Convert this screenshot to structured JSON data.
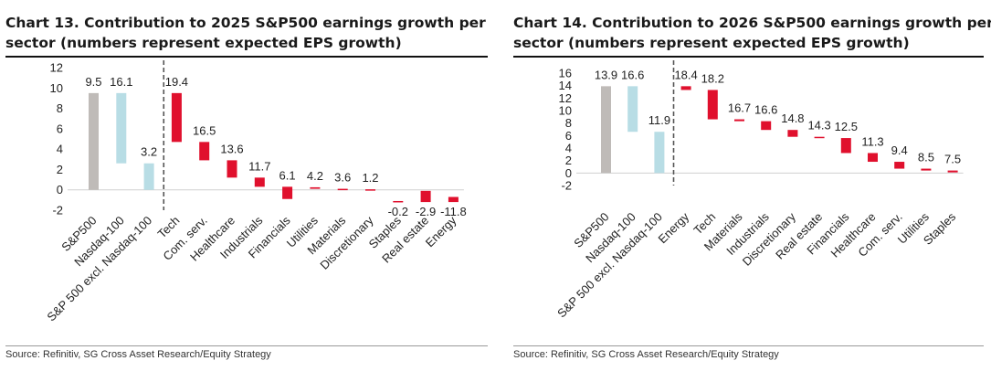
{
  "charts": [
    {
      "title": "Chart 13. Contribution to 2025 S&P500 earnings growth per sector (numbers represent expected EPS growth)",
      "source": "Source: Refinitiv, SG Cross Asset Research/Equity Strategy"
    },
    {
      "title": "Chart 14. Contribution to 2026 S&P500 earnings growth per sector (numbers represent expected EPS growth)",
      "source": "Source: Refinitiv, SG Cross Asset Research/Equity Strategy"
    }
  ],
  "chart_data": [
    {
      "type": "bar",
      "subtype": "waterfall",
      "title": "Chart 13. Contribution to 2025 S&P500 earnings growth per sector (numbers represent expected EPS growth)",
      "xlabel": "",
      "ylabel": "",
      "ylim": [
        -2,
        12
      ],
      "yticks": [
        -2,
        0,
        2,
        4,
        6,
        8,
        10,
        12
      ],
      "grid": false,
      "colors": {
        "total": "#bfbbb8",
        "nasdaq": "#b8dde5",
        "sector": "#e0102d"
      },
      "bars": [
        {
          "category": "S&P500",
          "kind": "total",
          "start": 0,
          "end": 9.5,
          "label": "9.5"
        },
        {
          "category": "Nasdaq-100",
          "kind": "nasdaq",
          "start": 2.6,
          "end": 9.5,
          "label": "16.1"
        },
        {
          "category": "S&P 500 excl. Nasdaq-100",
          "kind": "nasdaq",
          "start": 0,
          "end": 2.6,
          "label": "3.2"
        },
        {
          "category": "Tech",
          "kind": "sector",
          "start": 4.7,
          "end": 9.5,
          "label": "19.4"
        },
        {
          "category": "Com. serv.",
          "kind": "sector",
          "start": 2.9,
          "end": 4.7,
          "label": "16.5"
        },
        {
          "category": "Healthcare",
          "kind": "sector",
          "start": 1.2,
          "end": 2.9,
          "label": "13.6"
        },
        {
          "category": "Industrials",
          "kind": "sector",
          "start": 0.3,
          "end": 1.2,
          "label": "11.7"
        },
        {
          "category": "Financials",
          "kind": "sector",
          "start": -0.9,
          "end": 0.3,
          "label": "6.1"
        },
        {
          "category": "Utilities",
          "kind": "sector",
          "start": 0.1,
          "end": 0.25,
          "label": "4.2"
        },
        {
          "category": "Materials",
          "kind": "sector",
          "start": 0.0,
          "end": 0.1,
          "label": "3.6"
        },
        {
          "category": "Discretionary",
          "kind": "sector",
          "start": 0.0,
          "end": 0.05,
          "label": "1.2"
        },
        {
          "category": "Staples",
          "kind": "sector",
          "start": -1.2,
          "end": -1.1,
          "label": "-0.2"
        },
        {
          "category": "Real estate",
          "kind": "sector",
          "start": -1.2,
          "end": -0.1,
          "label": "-2.9"
        },
        {
          "category": "Energy",
          "kind": "sector",
          "start": -1.2,
          "end": -0.7,
          "label": "-11.8"
        }
      ]
    },
    {
      "type": "bar",
      "subtype": "waterfall",
      "title": "Chart 14. Contribution to 2026 S&P500 earnings growth per sector (numbers represent expected EPS growth)",
      "xlabel": "",
      "ylabel": "",
      "ylim": [
        -2,
        16
      ],
      "yticks": [
        -2,
        0,
        2,
        4,
        6,
        8,
        10,
        12,
        14,
        16
      ],
      "grid": false,
      "colors": {
        "total": "#bfbbb8",
        "nasdaq": "#b8dde5",
        "sector": "#e0102d"
      },
      "bars": [
        {
          "category": "S&P500",
          "kind": "total",
          "start": 0,
          "end": 13.9,
          "label": "13.9"
        },
        {
          "category": "Nasdaq-100",
          "kind": "nasdaq",
          "start": 6.6,
          "end": 13.9,
          "label": "16.6"
        },
        {
          "category": "S&P 500 excl. Nasdaq-100",
          "kind": "nasdaq",
          "start": 0,
          "end": 6.6,
          "label": "11.9"
        },
        {
          "category": "Energy",
          "kind": "sector",
          "start": 13.3,
          "end": 13.9,
          "label": "18.4"
        },
        {
          "category": "Tech",
          "kind": "sector",
          "start": 8.6,
          "end": 13.3,
          "label": "18.2"
        },
        {
          "category": "Materials",
          "kind": "sector",
          "start": 8.3,
          "end": 8.6,
          "label": "16.7"
        },
        {
          "category": "Industrials",
          "kind": "sector",
          "start": 6.9,
          "end": 8.3,
          "label": "16.6"
        },
        {
          "category": "Discretionary",
          "kind": "sector",
          "start": 5.8,
          "end": 6.9,
          "label": "14.8"
        },
        {
          "category": "Real estate",
          "kind": "sector",
          "start": 5.6,
          "end": 5.8,
          "label": "14.3"
        },
        {
          "category": "Financials",
          "kind": "sector",
          "start": 3.2,
          "end": 5.6,
          "label": "12.5"
        },
        {
          "category": "Healthcare",
          "kind": "sector",
          "start": 1.8,
          "end": 3.2,
          "label": "11.3"
        },
        {
          "category": "Com. serv.",
          "kind": "sector",
          "start": 0.7,
          "end": 1.8,
          "label": "9.4"
        },
        {
          "category": "Utilities",
          "kind": "sector",
          "start": 0.4,
          "end": 0.7,
          "label": "8.5"
        },
        {
          "category": "Staples",
          "kind": "sector",
          "start": 0.1,
          "end": 0.4,
          "label": "7.5"
        }
      ]
    }
  ]
}
